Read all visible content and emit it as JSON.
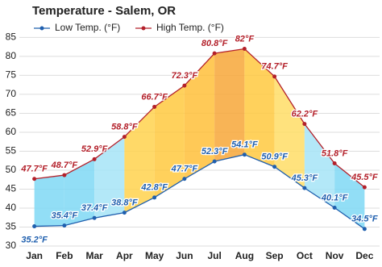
{
  "chart_data": {
    "type": "line",
    "title": "Temperature - Salem, OR",
    "categories": [
      "Jan",
      "Feb",
      "Mar",
      "Apr",
      "May",
      "Jun",
      "Jul",
      "Aug",
      "Sep",
      "Oct",
      "Nov",
      "Dec"
    ],
    "series": [
      {
        "name": "Low Temp. (°F)",
        "color": "#1f5fae",
        "values": [
          35.2,
          35.4,
          37.4,
          38.8,
          42.8,
          47.7,
          52.3,
          54.1,
          50.9,
          45.3,
          40.1,
          34.5
        ],
        "value_labels": [
          "35.2°F",
          "35.4°F",
          "37.4°F",
          "38.8°F",
          "42.8°F",
          "47.7°F",
          "52.3°F",
          "54.1°F",
          "50.9°F",
          "45.3°F",
          "40.1°F",
          "34.5°F"
        ]
      },
      {
        "name": "High Temp. (°F)",
        "color": "#b3202a",
        "values": [
          47.7,
          48.7,
          52.9,
          58.8,
          66.7,
          72.3,
          80.8,
          82,
          74.7,
          62.2,
          51.8,
          45.5
        ],
        "value_labels": [
          "47.7°F",
          "48.7°F",
          "52.9°F",
          "58.8°F",
          "66.7°F",
          "72.3°F",
          "80.8°F",
          "82°F",
          "74.7°F",
          "62.2°F",
          "51.8°F",
          "45.5°F"
        ]
      }
    ],
    "band_colors": [
      "#7fd8f5",
      "#7fd8f5",
      "#a6e4f7",
      "#ffd24d",
      "#ffc93f",
      "#ffbf3a",
      "#f7a738",
      "#ffc93f",
      "#ffdd66",
      "#a6e4f7",
      "#7fd8f5"
    ],
    "ylim": [
      30,
      87
    ],
    "yticks": [
      30,
      35,
      40,
      45,
      50,
      55,
      60,
      65,
      70,
      75,
      80,
      85
    ],
    "grid": true
  }
}
